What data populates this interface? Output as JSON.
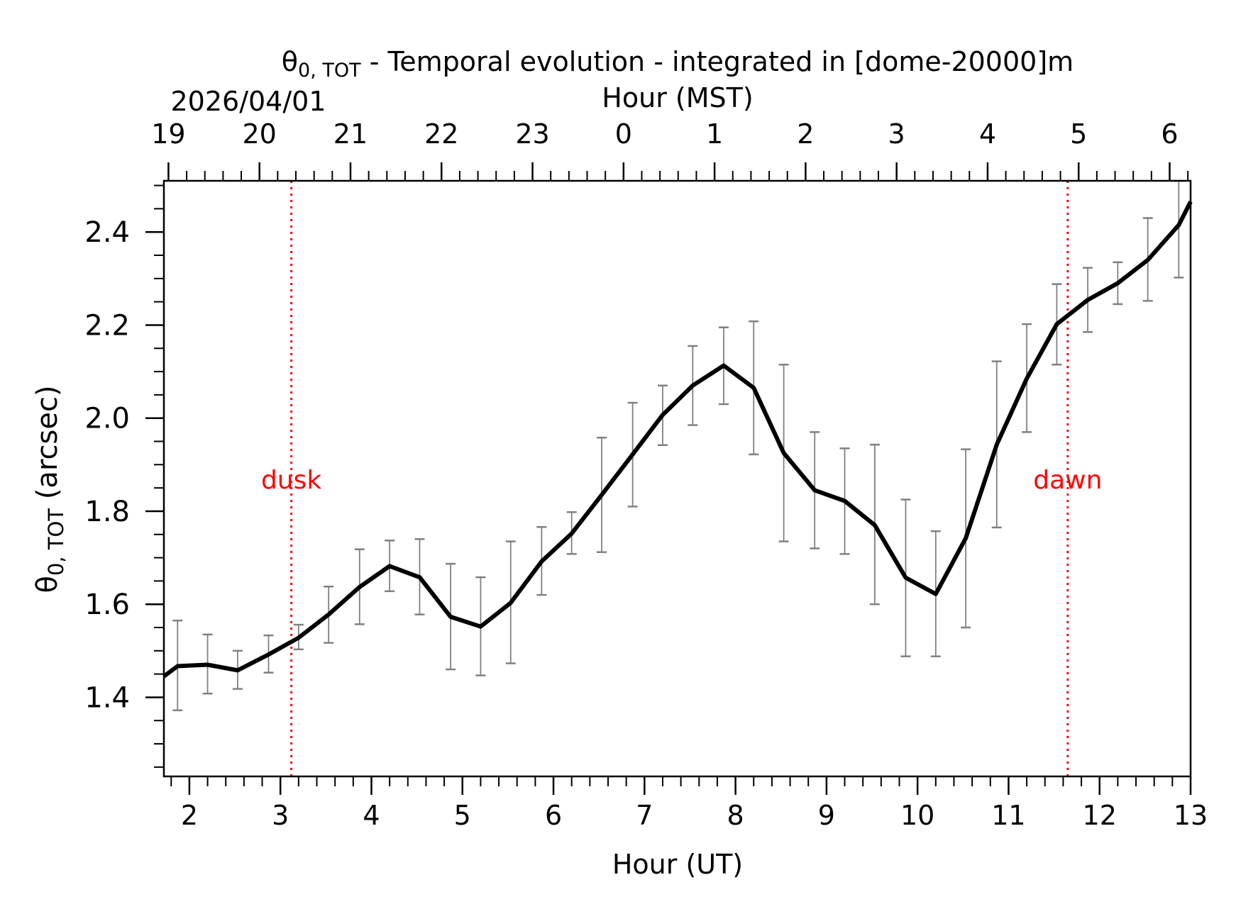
{
  "chart_data": {
    "type": "line",
    "title_main": "θ",
    "title_sub": "0, TOT",
    "title_rest": " - Temporal evolution - integrated in [dome-20000]m",
    "date_label": "2026/04/01",
    "top_axis_label": "Hour (MST)",
    "xlabel": "Hour (UT)",
    "ylabel_main": "θ",
    "ylabel_sub": "0, TOT",
    "ylabel_rest": " (arcsec)",
    "xlim": [
      1.72,
      13.0
    ],
    "ylim": [
      1.23,
      2.51
    ],
    "x_ticks": [
      2,
      3,
      4,
      5,
      6,
      7,
      8,
      9,
      10,
      11,
      12,
      13
    ],
    "x_tick_labels": [
      "2",
      "3",
      "4",
      "5",
      "6",
      "7",
      "8",
      "9",
      "10",
      "11",
      "12",
      "13"
    ],
    "y_ticks": [
      1.4,
      1.6,
      1.8,
      2.0,
      2.2,
      2.4
    ],
    "y_tick_labels": [
      "1.4",
      "1.6",
      "1.8",
      "2.0",
      "2.2",
      "2.4"
    ],
    "top_ticks_ut": [
      1.77,
      2.77,
      3.77,
      4.77,
      5.77,
      6.77,
      7.77,
      8.77,
      9.77,
      10.77,
      11.77,
      12.77
    ],
    "top_tick_labels": [
      "19",
      "20",
      "21",
      "22",
      "23",
      "0",
      "1",
      "2",
      "3",
      "4",
      "5",
      "6"
    ],
    "series": [
      {
        "name": "theta0_tot",
        "color": "#000000",
        "x": [
          1.72,
          1.87,
          2.2,
          2.53,
          2.87,
          3.2,
          3.53,
          3.87,
          4.2,
          4.53,
          4.87,
          5.2,
          5.53,
          5.87,
          6.2,
          6.53,
          6.87,
          7.2,
          7.53,
          7.87,
          8.2,
          8.53,
          8.87,
          9.2,
          9.53,
          9.87,
          10.2,
          10.53,
          10.87,
          11.2,
          11.53,
          11.87,
          12.2,
          12.53,
          12.87,
          13.0
        ],
        "y": [
          1.445,
          1.467,
          1.47,
          1.458,
          1.492,
          1.528,
          1.578,
          1.637,
          1.682,
          1.658,
          1.573,
          1.552,
          1.603,
          1.692,
          1.752,
          1.835,
          1.922,
          2.007,
          2.07,
          2.113,
          2.065,
          1.925,
          1.845,
          1.822,
          1.77,
          1.657,
          1.622,
          1.742,
          1.943,
          2.085,
          2.202,
          2.254,
          2.29,
          2.34,
          2.415,
          2.465
        ]
      }
    ],
    "error_bars": {
      "color": "#808080",
      "x": [
        1.87,
        2.2,
        2.53,
        2.87,
        3.2,
        3.53,
        3.87,
        4.2,
        4.53,
        4.87,
        5.2,
        5.53,
        5.87,
        6.2,
        6.53,
        6.87,
        7.2,
        7.53,
        7.87,
        8.2,
        8.53,
        8.87,
        9.2,
        9.53,
        9.87,
        10.2,
        10.53,
        10.87,
        11.2,
        11.53,
        11.87,
        12.2,
        12.53,
        12.87
      ],
      "low": [
        1.372,
        1.408,
        1.418,
        1.453,
        1.503,
        1.517,
        1.557,
        1.628,
        1.578,
        1.46,
        1.447,
        1.473,
        1.62,
        1.708,
        1.712,
        1.81,
        1.942,
        1.985,
        2.03,
        1.922,
        1.735,
        1.72,
        1.708,
        1.6,
        1.488,
        1.488,
        1.55,
        1.765,
        1.97,
        2.115,
        2.185,
        2.245,
        2.252,
        2.302
      ],
      "high": [
        1.565,
        1.535,
        1.5,
        1.533,
        1.556,
        1.638,
        1.718,
        1.737,
        1.74,
        1.687,
        1.658,
        1.735,
        1.766,
        1.798,
        1.958,
        2.033,
        2.07,
        2.155,
        2.195,
        2.208,
        2.115,
        1.97,
        1.935,
        1.943,
        1.825,
        1.757,
        1.933,
        2.122,
        2.202,
        2.288,
        2.323,
        2.335,
        2.43,
        2.51
      ]
    },
    "vlines": [
      {
        "x": 3.12,
        "label": "dusk",
        "color": "#ff0000"
      },
      {
        "x": 11.65,
        "label": "dawn",
        "color": "#ff0000"
      }
    ]
  }
}
